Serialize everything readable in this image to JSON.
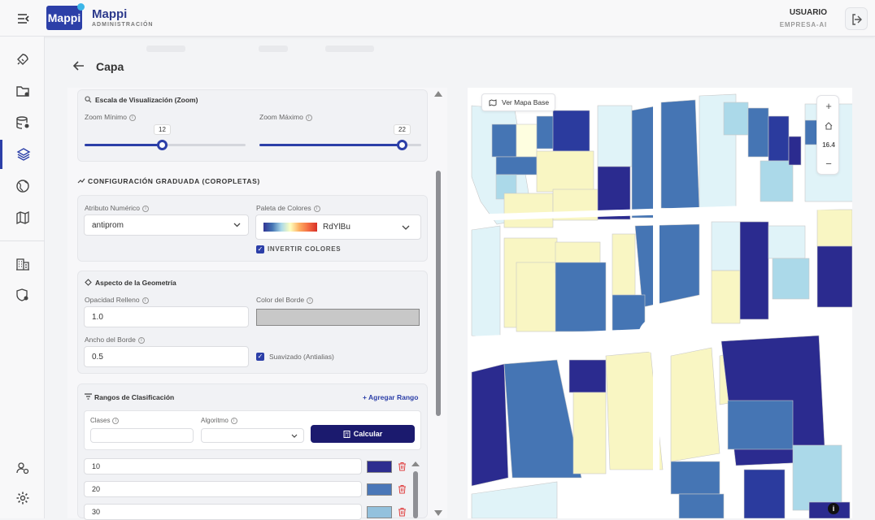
{
  "header": {
    "brand_name": "Mappi",
    "brand_subtitle": "ADMINISTRACIÓN",
    "logo_text": "Mappi",
    "user_name": "USUARIO",
    "user_company": "EMPRESA-AI"
  },
  "page": {
    "title": "Capa"
  },
  "zoom_section": {
    "title": "Escala de Visualización (Zoom)",
    "min_label": "Zoom Mínimo",
    "min_value": "12",
    "min_fraction": 0.48,
    "max_label": "Zoom Máximo",
    "max_value": "22",
    "max_fraction": 0.88
  },
  "graduated": {
    "title": "CONFIGURACIÓN GRADUADA (COROPLETAS)",
    "attribute_label": "Atributo Numérico",
    "attribute_value": "antiprom",
    "palette_label": "Paleta de Colores",
    "palette_value": "RdYlBu",
    "invert_label": "INVERTIR COLORES",
    "invert_checked": true
  },
  "geometry": {
    "title": "Aspecto de la Geometría",
    "opacity_label": "Opacidad Relleno",
    "opacity_value": "1.0",
    "border_color_label": "Color del Borde",
    "border_color": "#c8c8c8",
    "border_width_label": "Ancho del Borde",
    "border_width_value": "0.5",
    "antialias_label": "Suavizado (Antialias)",
    "antialias_checked": true
  },
  "ranges": {
    "title": "Rangos de Clasificación",
    "add_label": "Agregar Rango",
    "classes_label": "Clases",
    "algorithm_label": "Algoritmo",
    "calc_label": "Calcular",
    "rows": [
      {
        "value": "10",
        "color": "#2d2d8f"
      },
      {
        "value": "20",
        "color": "#4a77b8"
      },
      {
        "value": "30",
        "color": "#93c1dd"
      }
    ]
  },
  "map": {
    "base_button": "Ver Mapa Base",
    "zoom_level": "16.4",
    "zoom_in": "+",
    "zoom_out": "−",
    "info": "i"
  },
  "colors": {
    "accent": "#2c3fa8",
    "dark_button": "#1b1a6e"
  }
}
